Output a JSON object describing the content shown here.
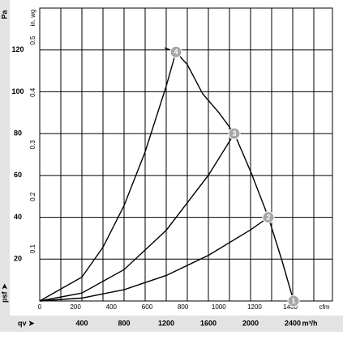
{
  "chart_data": {
    "type": "line",
    "y_unit": "Pa",
    "y2_unit": "in. wg",
    "x_unit": "m³/h",
    "x2_unit": "cfm",
    "y_axis_label": "psf ➤",
    "x_axis_label": "qv ➤",
    "xlim": [
      0,
      2777
    ],
    "xticks": [
      400,
      800,
      1200,
      1600,
      2000,
      2400
    ],
    "xgrid": [
      0,
      200,
      400,
      600,
      800,
      1000,
      1200,
      1400,
      1600,
      1800,
      2000,
      2200,
      2400,
      2600
    ],
    "x2lim": [
      0,
      1635
    ],
    "x2ticks": [
      0,
      200,
      400,
      600,
      800,
      1000,
      1200,
      1400
    ],
    "ylim": [
      0,
      140
    ],
    "yticks": [
      20,
      40,
      60,
      80,
      100,
      120
    ],
    "y2lim": [
      0,
      0.562
    ],
    "y2ticks": [
      0.1,
      0.2,
      0.3,
      0.4,
      0.5
    ],
    "grid": true,
    "color": "#000000",
    "series": [
      {
        "x": [
          1185,
          1292,
          1400,
          1546,
          1700,
          1846,
          2008,
          2169,
          2300,
          2408
        ],
        "values": [
          121,
          119,
          113,
          99,
          90,
          80,
          61,
          40,
          19,
          0
        ]
      },
      {
        "x": [
          0,
          400,
          600,
          800,
          1000,
          1200,
          1292
        ],
        "values": [
          0,
          11.4,
          25.7,
          45.6,
          71.3,
          102.7,
          119
        ]
      },
      {
        "x": [
          0,
          400,
          800,
          1200,
          1600,
          1846
        ],
        "values": [
          0,
          3.8,
          15,
          33.8,
          60.1,
          80
        ]
      },
      {
        "x": [
          0,
          400,
          800,
          1200,
          1600,
          2000,
          2169
        ],
        "values": [
          0,
          1.4,
          5.4,
          12.2,
          21.8,
          34,
          40
        ]
      }
    ],
    "points": [
      {
        "label": "1",
        "x": 2408,
        "y": 0
      },
      {
        "label": "2",
        "x": 2169,
        "y": 40
      },
      {
        "label": "3",
        "x": 1846,
        "y": 80
      },
      {
        "label": "4",
        "x": 1292,
        "y": 119
      }
    ]
  }
}
